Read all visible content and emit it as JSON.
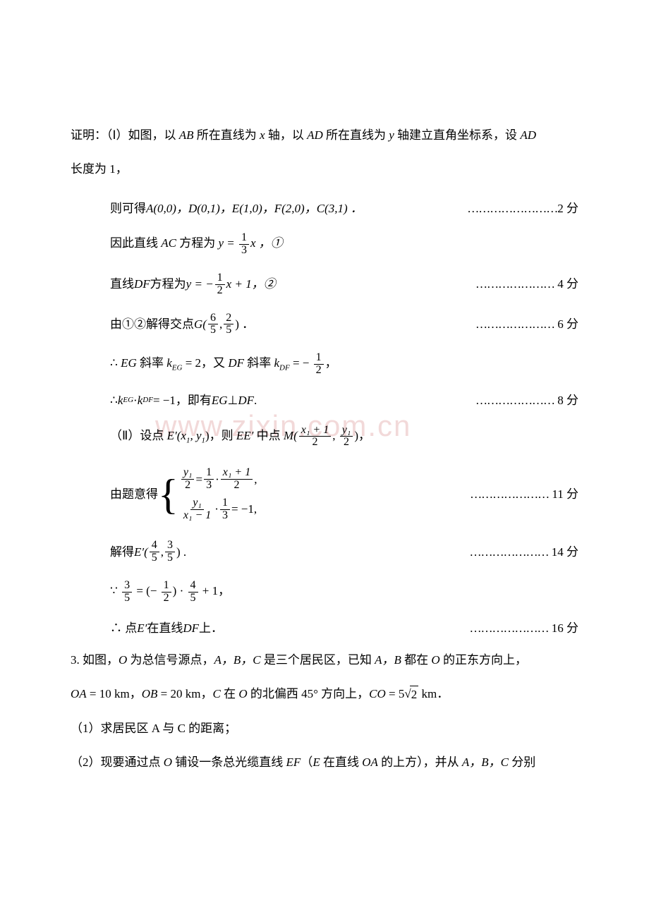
{
  "watermark": "www.zixin.com.cn",
  "intro": {
    "prefix": "证明：（Ⅰ）如图，以 ",
    "ab": "AB",
    "mid1": " 所在直线为 ",
    "x": "x",
    "mid2": " 轴，以 ",
    "ad": "AD",
    "mid3": " 所在直线为 ",
    "y": "y",
    "mid4": " 轴建立直角坐标系，设 ",
    "ad2": "AD",
    "line2": "长度为 1，"
  },
  "step1": {
    "pre": "则可得 ",
    "pts": "A(0,0)，D(0,1)，E(1,0)，F(2,0)，C(3,1)  ．",
    "dots": "……………………",
    "score": "2 分"
  },
  "step2": {
    "pre": "因此直线 ",
    "var": "AC",
    "mid": " 方程为 ",
    "eq": "y = ",
    "post": "x ，①",
    "f_n": "1",
    "f_d": "3"
  },
  "step3": {
    "pre": "直线 ",
    "var": "DF",
    "mid": " 方程为 ",
    "eq": "y = − ",
    "post": "x + 1，②",
    "f_n": "1",
    "f_d": "2",
    "dots": "…………………",
    "score": "4 分"
  },
  "step4": {
    "pre": "由①②解得交点 ",
    "var": "G(",
    "f1n": "6",
    "f1d": "5",
    "comma": ", ",
    "f2n": "2",
    "f2d": "5",
    "post": ")  ．",
    "dots": "…………………",
    "score": "6 分"
  },
  "step5": {
    "pre": "∴ ",
    "eg": "EG",
    "mid1": " 斜率 ",
    "keg": "k",
    "kegsub": "EG",
    "eq1": " = 2，又 ",
    "df": "DF",
    "mid2": " 斜率 ",
    "kdf": "k",
    "kdfsub": "DF",
    "eq2": " = − ",
    "f_n": "1",
    "f_d": "2",
    "comma": "，"
  },
  "step6": {
    "pre": "∴ ",
    "k1": "k",
    "k1s": "EG",
    "dot": " · ",
    "k2": "k",
    "k2s": "DF",
    "eq": " = −1，即有 ",
    "eg": "EG",
    "perp": " ⊥ ",
    "df": "DF",
    "period": ".",
    "dots": "…………………",
    "score": "8 分"
  },
  "step7": {
    "pre": "（Ⅱ）设点 ",
    "ep": "E′(x",
    "s1": "1",
    "c1": ", y",
    "s2": "1",
    "c2": ")，则 ",
    "ee": "EE′",
    "mid": " 中点 ",
    "m": "M(",
    "f1n": "x₁ + 1",
    "f1d": "2",
    "comma": ", ",
    "f2n": "y₁",
    "f2d": "2",
    "post": ")，"
  },
  "step8": {
    "pre": "由题意得  ",
    "eq1": {
      "l_n": "y₁",
      "l_d": "2",
      "eq": " = ",
      "m_n": "1",
      "m_d": "3",
      "dot": " · ",
      "r_n": "x₁ + 1",
      "r_d": "2",
      "c": ","
    },
    "eq2": {
      "l_n": "y₁",
      "l_d": "x₁ − 1",
      "dot": " · ",
      "m_n": "1",
      "m_d": "3",
      "eq": " = −1,"
    },
    "dots": "…………………",
    "score": "11 分"
  },
  "step9": {
    "pre": "解得 ",
    "ep": "E′(",
    "f1n": "4",
    "f1d": "5",
    "comma": ", ",
    "f2n": "3",
    "f2d": "5",
    "post": ") .",
    "dots": "…………………",
    "score": "14 分"
  },
  "step10": {
    "pre": "∵ ",
    "f1n": "3",
    "f1d": "5",
    "eq": " = (− ",
    "f2n": "1",
    "f2d": "2",
    "mid": ") · ",
    "f3n": "4",
    "f3d": "5",
    "post": " + 1，"
  },
  "step11": {
    "pre": "∴ 点 ",
    "ep": "E′",
    "mid": " 在直线 ",
    "df": "DF",
    "post": " 上．",
    "dots": "…………………",
    "score": "16 分"
  },
  "q3": {
    "l1a": "3.  如图，",
    "o": "O",
    "l1b": " 为总信号源点，",
    "abc": "A，B，C",
    "l1c": " 是三个居民区，已知 ",
    "ab": "A，B",
    "l1d": " 都在 ",
    "o2": "O",
    "l1e": " 的正东方向上，",
    "l2a": "OA",
    "l2b": " = 10   km，",
    "l2c": "OB",
    "l2d": " = 20   km，",
    "c": "C",
    "l2e": " 在 ",
    "o3": "O",
    "l2f": " 的北偏西 45° 方向上，",
    "co": "CO",
    "l2g": " = 5",
    "sqrt": "2",
    "l2h": "  km．",
    "l3": "（1）求居民区 A 与 C 的距离；",
    "l4a": "（2）现要通过点 ",
    "o4": "O",
    "l4b": " 铺设一条总光缆直线 ",
    "ef": "EF",
    "l4c": "（",
    "e": "E",
    "l4d": " 在直线 ",
    "oa": "OA",
    "l4e": " 的上方），并从 ",
    "abc2": "A，B，C",
    "l4f": " 分别"
  }
}
